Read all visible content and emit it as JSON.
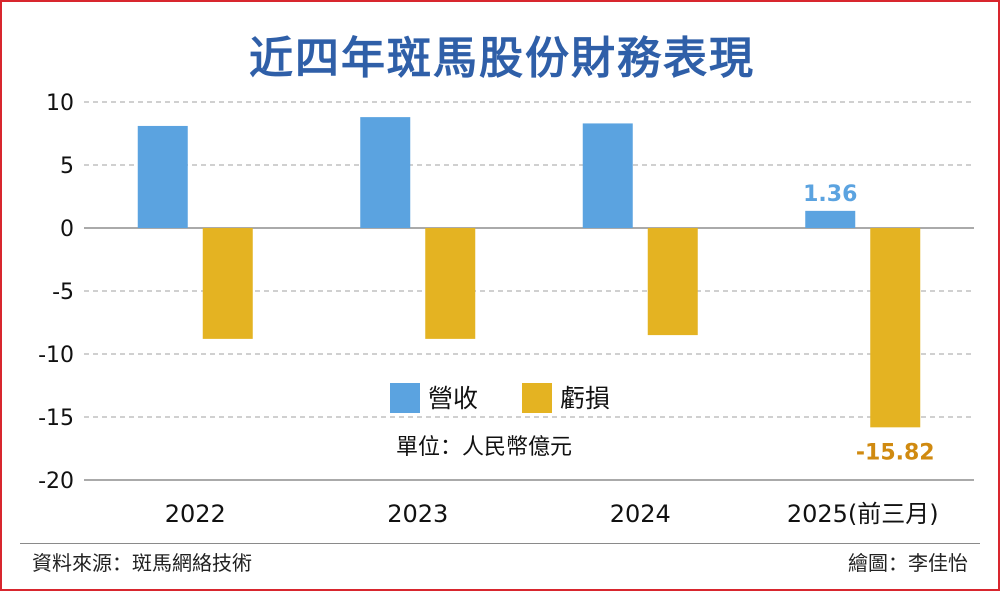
{
  "title": "近四年斑馬股份財務表現",
  "source": "資料來源：斑馬網絡技術",
  "credit": "繪圖：李佳怡",
  "colors": {
    "revenue": "#5ba3e0",
    "loss": "#e4b322",
    "title": "#2f5fa8",
    "grid": "#a0a0a0",
    "label_revenue": "#5ba3e0",
    "label_loss": "#d08a10"
  },
  "chart_data": {
    "type": "bar",
    "categories": [
      "2022",
      "2023",
      "2024",
      "2025(前三月)"
    ],
    "series": [
      {
        "name": "營收",
        "values": [
          8.1,
          8.8,
          8.3,
          1.36
        ]
      },
      {
        "name": "虧損",
        "values": [
          -8.8,
          -8.8,
          -8.5,
          -15.82
        ]
      }
    ],
    "data_labels": [
      {
        "series": 0,
        "index": 3,
        "text": "1.36"
      },
      {
        "series": 1,
        "index": 3,
        "text": "-15.82"
      }
    ],
    "unit": "單位：人民幣億元",
    "ylim": [
      -20,
      10
    ],
    "yticks": [
      10,
      5,
      0,
      -5,
      -10,
      -15,
      -20
    ],
    "grid": true,
    "legend_position": "lower-center"
  }
}
